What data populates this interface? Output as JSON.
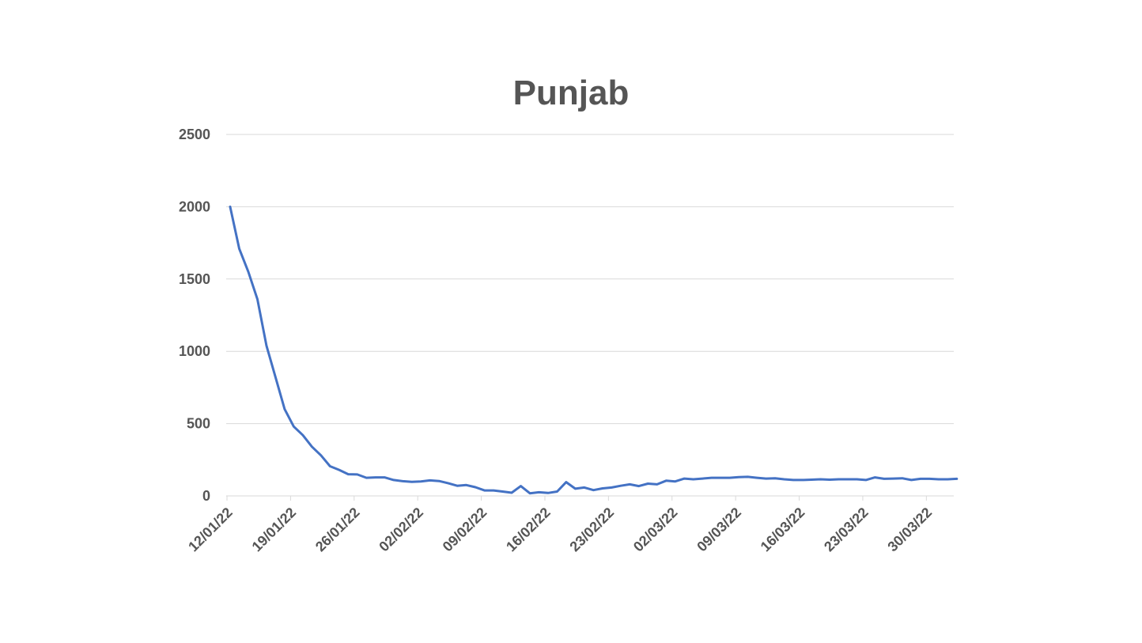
{
  "chart_data": {
    "type": "line",
    "title": "Punjab",
    "xlabel": "",
    "ylabel": "",
    "ylim": [
      0,
      2500
    ],
    "yticks": [
      0,
      500,
      1000,
      1500,
      2000,
      2500
    ],
    "grid": true,
    "legend": "none",
    "x_tick_labels": [
      "12/01/22",
      "19/01/22",
      "26/01/22",
      "02/02/22",
      "09/02/22",
      "16/02/22",
      "23/02/22",
      "02/03/22",
      "09/03/22",
      "16/03/22",
      "23/03/22",
      "30/03/22"
    ],
    "x_tick_every_days": 7,
    "x": [
      "12/01/22",
      "13/01/22",
      "14/01/22",
      "15/01/22",
      "16/01/22",
      "17/01/22",
      "18/01/22",
      "19/01/22",
      "20/01/22",
      "21/01/22",
      "22/01/22",
      "23/01/22",
      "24/01/22",
      "25/01/22",
      "26/01/22",
      "27/01/22",
      "28/01/22",
      "29/01/22",
      "30/01/22",
      "31/01/22",
      "01/02/22",
      "02/02/22",
      "03/02/22",
      "04/02/22",
      "05/02/22",
      "06/02/22",
      "07/02/22",
      "08/02/22",
      "09/02/22",
      "10/02/22",
      "11/02/22",
      "12/02/22",
      "13/02/22",
      "14/02/22",
      "15/02/22",
      "16/02/22",
      "17/02/22",
      "18/02/22",
      "19/02/22",
      "20/02/22",
      "21/02/22",
      "22/02/22",
      "23/02/22",
      "24/02/22",
      "25/02/22",
      "26/02/22",
      "27/02/22",
      "28/02/22",
      "01/03/22",
      "02/03/22",
      "03/03/22",
      "04/03/22",
      "05/03/22",
      "06/03/22",
      "07/03/22",
      "08/03/22",
      "09/03/22",
      "10/03/22",
      "11/03/22",
      "12/03/22",
      "13/03/22",
      "14/03/22",
      "15/03/22",
      "16/03/22",
      "17/03/22",
      "18/03/22",
      "19/03/22",
      "20/03/22",
      "21/03/22",
      "22/03/22",
      "23/03/22",
      "24/03/22",
      "25/03/22",
      "26/03/22",
      "27/03/22",
      "28/03/22",
      "29/03/22",
      "30/03/22",
      "31/03/22",
      "01/04/22",
      "02/04/22"
    ],
    "series": [
      {
        "name": "",
        "color": "#4472c4",
        "values": [
          2000,
          1710,
          1550,
          1360,
          1040,
          820,
          600,
          480,
          420,
          340,
          280,
          205,
          180,
          150,
          148,
          125,
          128,
          128,
          110,
          102,
          97,
          100,
          107,
          103,
          88,
          70,
          75,
          60,
          38,
          38,
          30,
          22,
          68,
          18,
          25,
          20,
          30,
          95,
          50,
          58,
          40,
          52,
          58,
          70,
          80,
          68,
          85,
          80,
          105,
          100,
          120,
          115,
          120,
          125,
          125,
          125,
          130,
          132,
          125,
          120,
          122,
          115,
          110,
          110,
          112,
          115,
          112,
          115,
          115,
          115,
          110,
          128,
          118,
          120,
          122,
          110,
          118,
          118,
          115,
          115,
          118
        ]
      }
    ]
  }
}
